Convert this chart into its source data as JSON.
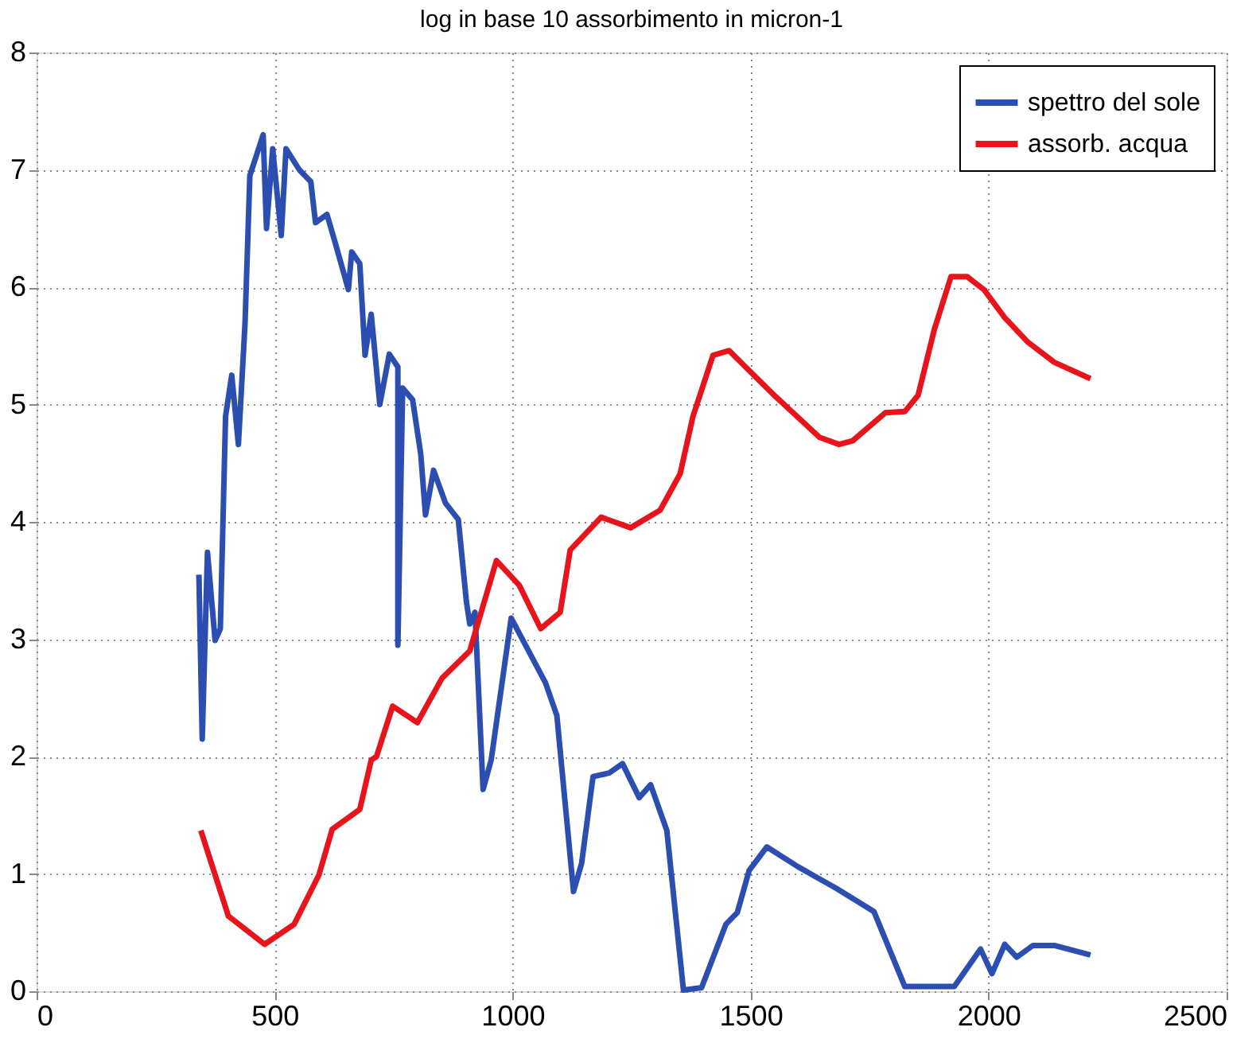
{
  "chart_data": {
    "type": "line",
    "title": "log in base 10  assorbimento  in micron-1",
    "xlim": [
      0,
      2500
    ],
    "xticks": [
      0,
      500,
      1000,
      1500,
      2000,
      2500
    ],
    "ylim": [
      0,
      8
    ],
    "yticks": [
      0,
      1,
      2,
      3,
      4,
      5,
      6,
      7,
      8
    ],
    "grid": true,
    "legend": "top right",
    "line_style": "solid",
    "marker": "none",
    "series": [
      {
        "name": "spettro del sole",
        "color": "#2b4eb0",
        "x": [
          341,
          348,
          359,
          375,
          386,
          397,
          410,
          424,
          438,
          448,
          476,
          483,
          496,
          514,
          524,
          552,
          576,
          586,
          610,
          628,
          655,
          662,
          679,
          690,
          703,
          721,
          741,
          759,
          759,
          769,
          790,
          807,
          817,
          834,
          859,
          886,
          903,
          910,
          921,
          938,
          955,
          997,
          1069,
          1093,
          1128,
          1145,
          1169,
          1203,
          1231,
          1266,
          1290,
          1324,
          1359,
          1397,
          1448,
          1472,
          1497,
          1534,
          1600,
          1679,
          1759,
          1824,
          1928,
          1983,
          2007,
          2034,
          2059,
          2093,
          2138,
          2214
        ],
        "values": [
          3.55,
          2.15,
          3.74,
          2.99,
          3.09,
          4.9,
          5.25,
          4.66,
          5.7,
          6.95,
          7.3,
          6.5,
          7.18,
          6.44,
          7.18,
          7.0,
          6.9,
          6.55,
          6.62,
          6.37,
          5.98,
          6.3,
          6.2,
          5.42,
          5.77,
          5.0,
          5.43,
          5.32,
          2.95,
          5.14,
          5.04,
          4.58,
          4.06,
          4.44,
          4.16,
          4.02,
          3.32,
          3.13,
          3.23,
          1.72,
          1.97,
          3.18,
          2.63,
          2.35,
          0.85,
          1.09,
          1.83,
          1.86,
          1.94,
          1.65,
          1.76,
          1.37,
          0.01,
          0.03,
          0.57,
          0.67,
          1.03,
          1.23,
          1.06,
          0.88,
          0.68,
          0.04,
          0.04,
          0.36,
          0.15,
          0.4,
          0.29,
          0.39,
          0.39,
          0.31
        ]
      },
      {
        "name": "assorb. acqua",
        "color": "#e8141c",
        "x": [
          345,
          403,
          479,
          541,
          593,
          621,
          679,
          703,
          714,
          748,
          800,
          852,
          910,
          966,
          1014,
          1059,
          1100,
          1121,
          1186,
          1248,
          1310,
          1352,
          1379,
          1421,
          1455,
          1497,
          1552,
          1645,
          1686,
          1714,
          1783,
          1824,
          1852,
          1886,
          1921,
          1955,
          1990,
          2034,
          2083,
          2138,
          2214
        ],
        "values": [
          1.37,
          0.64,
          0.4,
          0.57,
          0.99,
          1.38,
          1.55,
          1.97,
          2.0,
          2.43,
          2.29,
          2.67,
          2.9,
          3.67,
          3.46,
          3.09,
          3.23,
          3.76,
          4.04,
          3.95,
          4.1,
          4.41,
          4.9,
          5.42,
          5.46,
          5.29,
          5.07,
          4.72,
          4.66,
          4.69,
          4.93,
          4.94,
          5.08,
          5.64,
          6.09,
          6.09,
          5.98,
          5.74,
          5.53,
          5.36,
          5.22
        ]
      }
    ]
  }
}
